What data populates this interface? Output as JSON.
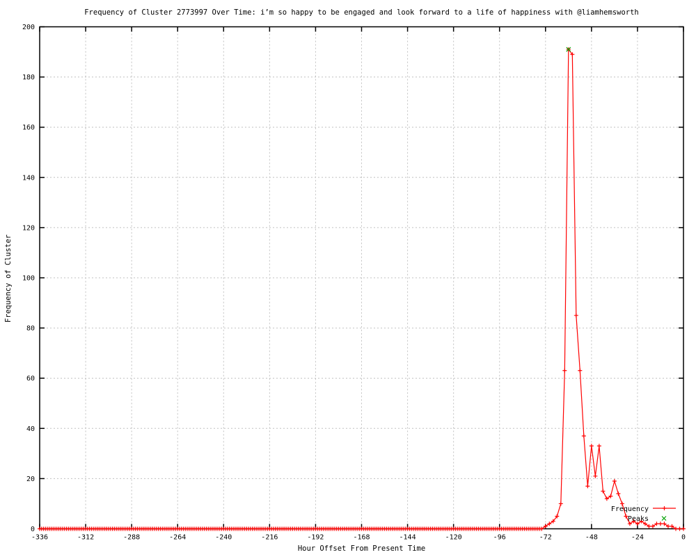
{
  "chart_data": {
    "type": "line",
    "title": "Frequency of Cluster 2773997 Over Time: i’m so happy to be engaged and look forward to a life of happiness with @liamhemsworth",
    "xlabel": "Hour Offset From Present Time",
    "ylabel": "Frequency of Cluster",
    "xlim": [
      -336,
      0
    ],
    "ylim": [
      0,
      200
    ],
    "x_ticks": [
      -336,
      -312,
      -288,
      -264,
      -240,
      -216,
      -192,
      -168,
      -144,
      -120,
      -96,
      -72,
      -48,
      -24,
      0
    ],
    "y_ticks": [
      0,
      20,
      40,
      60,
      80,
      100,
      120,
      140,
      160,
      180,
      200
    ],
    "grid": true,
    "grid_color": "#c0c0c0",
    "border_color": "#000000",
    "legend_position": "inside-bottom-right",
    "series": [
      {
        "name": "Frequency",
        "color": "#ff0000",
        "marker": "plus",
        "baseline": {
          "from": -336,
          "to": -75,
          "step": 1,
          "value": 0
        },
        "points": [
          [
            -74,
            0
          ],
          [
            -72,
            1
          ],
          [
            -70,
            2
          ],
          [
            -68,
            3
          ],
          [
            -66,
            5
          ],
          [
            -64,
            10
          ],
          [
            -62,
            63
          ],
          [
            -60,
            191
          ],
          [
            -58,
            189
          ],
          [
            -56,
            85
          ],
          [
            -54,
            63
          ],
          [
            -52,
            37
          ],
          [
            -50,
            17
          ],
          [
            -48,
            33
          ],
          [
            -46,
            21
          ],
          [
            -44,
            33
          ],
          [
            -42,
            15
          ],
          [
            -40,
            12
          ],
          [
            -38,
            13
          ],
          [
            -36,
            19
          ],
          [
            -34,
            14
          ],
          [
            -32,
            10
          ],
          [
            -30,
            5
          ],
          [
            -28,
            2
          ],
          [
            -26,
            3
          ],
          [
            -24,
            2
          ],
          [
            -22,
            3
          ],
          [
            -20,
            2
          ],
          [
            -18,
            1
          ],
          [
            -16,
            1
          ],
          [
            -14,
            2
          ],
          [
            -12,
            2
          ],
          [
            -10,
            2
          ],
          [
            -8,
            1
          ],
          [
            -6,
            1
          ],
          [
            -4,
            0
          ],
          [
            -2,
            0
          ],
          [
            0,
            0
          ]
        ]
      },
      {
        "name": "Peaks",
        "color": "#00a000",
        "marker": "cross",
        "points": [
          [
            -60,
            191
          ]
        ]
      }
    ]
  }
}
